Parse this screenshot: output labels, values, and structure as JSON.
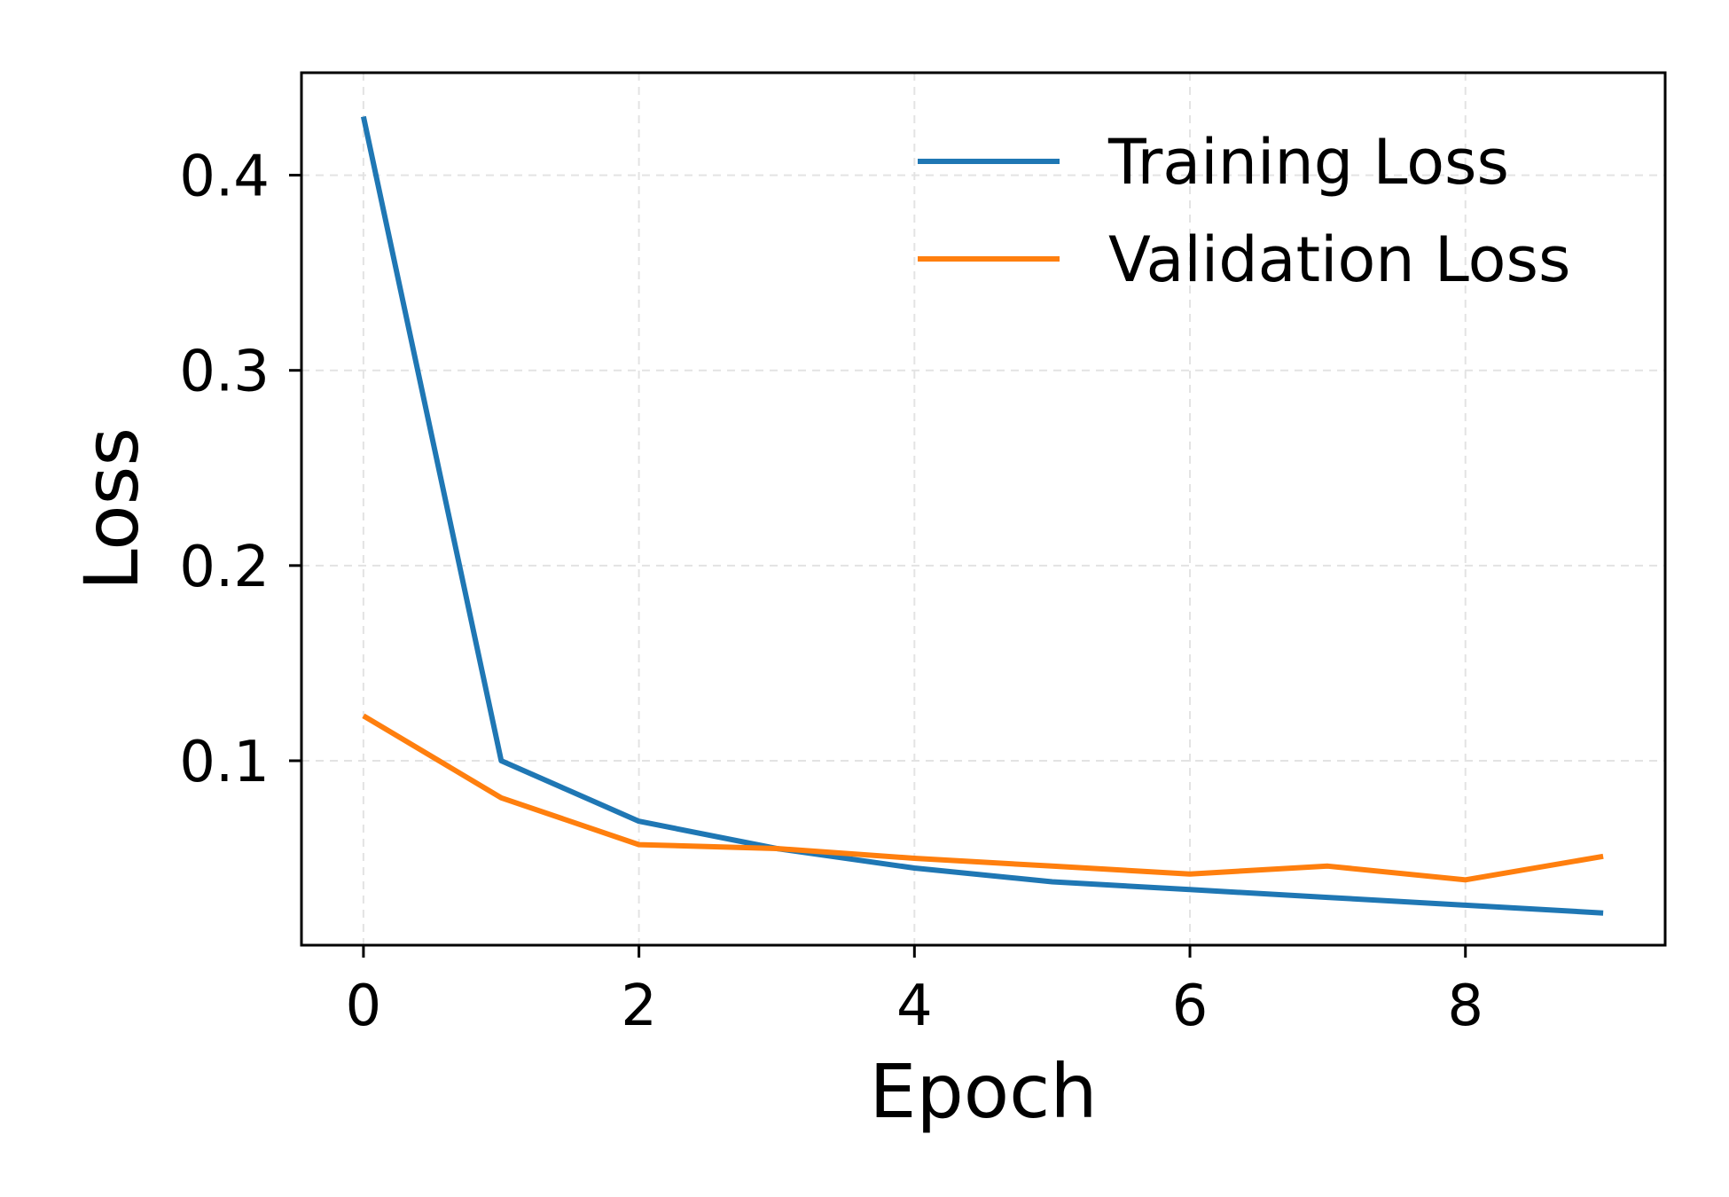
{
  "chart_data": {
    "type": "line",
    "xlabel": "Epoch",
    "ylabel": "Loss",
    "xlim": [
      -0.45,
      9.45
    ],
    "ylim": [
      0.0055,
      0.4525
    ],
    "xticks": [
      0,
      2,
      4,
      6,
      8
    ],
    "xtick_labels": [
      "0",
      "2",
      "4",
      "6",
      "8"
    ],
    "yticks": [
      0.1,
      0.2,
      0.3,
      0.4
    ],
    "ytick_labels": [
      "0.1",
      "0.2",
      "0.3",
      "0.4"
    ],
    "grid": true,
    "legend_position": "top-right",
    "x": [
      0,
      1,
      2,
      3,
      4,
      5,
      6,
      7,
      8,
      9
    ],
    "series": [
      {
        "name": "Training Loss",
        "color": "#1f77b4",
        "values": [
          0.43,
          0.1,
          0.069,
          0.055,
          0.045,
          0.038,
          0.034,
          0.03,
          0.026,
          0.022
        ]
      },
      {
        "name": "Validation Loss",
        "color": "#ff7f0e",
        "values": [
          0.123,
          0.081,
          0.057,
          0.055,
          0.05,
          0.046,
          0.042,
          0.046,
          0.039,
          0.051
        ]
      }
    ]
  }
}
